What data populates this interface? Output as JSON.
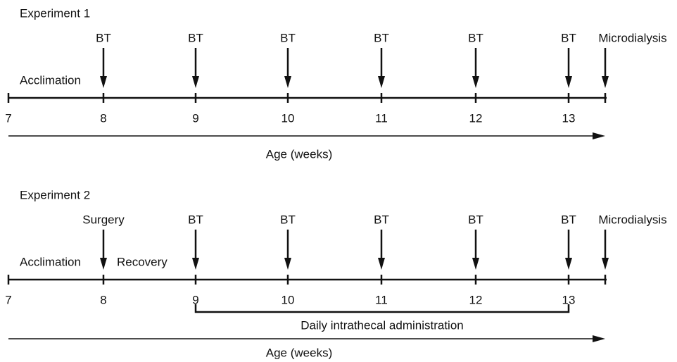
{
  "experiments": [
    {
      "title": "Experiment 1",
      "events": [
        "BT",
        "BT",
        "BT",
        "BT",
        "BT",
        "BT",
        "Microdialysis"
      ],
      "phases": [
        "Acclimation"
      ],
      "weeks": [
        "7",
        "8",
        "9",
        "10",
        "11",
        "12",
        "13"
      ],
      "axis_label": "Age (weeks)"
    },
    {
      "title": "Experiment 2",
      "events": [
        "Surgery",
        "BT",
        "BT",
        "BT",
        "BT",
        "BT",
        "Microdialysis"
      ],
      "phases": [
        "Acclimation",
        "Recovery"
      ],
      "weeks": [
        "7",
        "8",
        "9",
        "10",
        "11",
        "12",
        "13"
      ],
      "bracket_label": "Daily intrathecal administration",
      "axis_label": "Age (weeks)"
    }
  ]
}
